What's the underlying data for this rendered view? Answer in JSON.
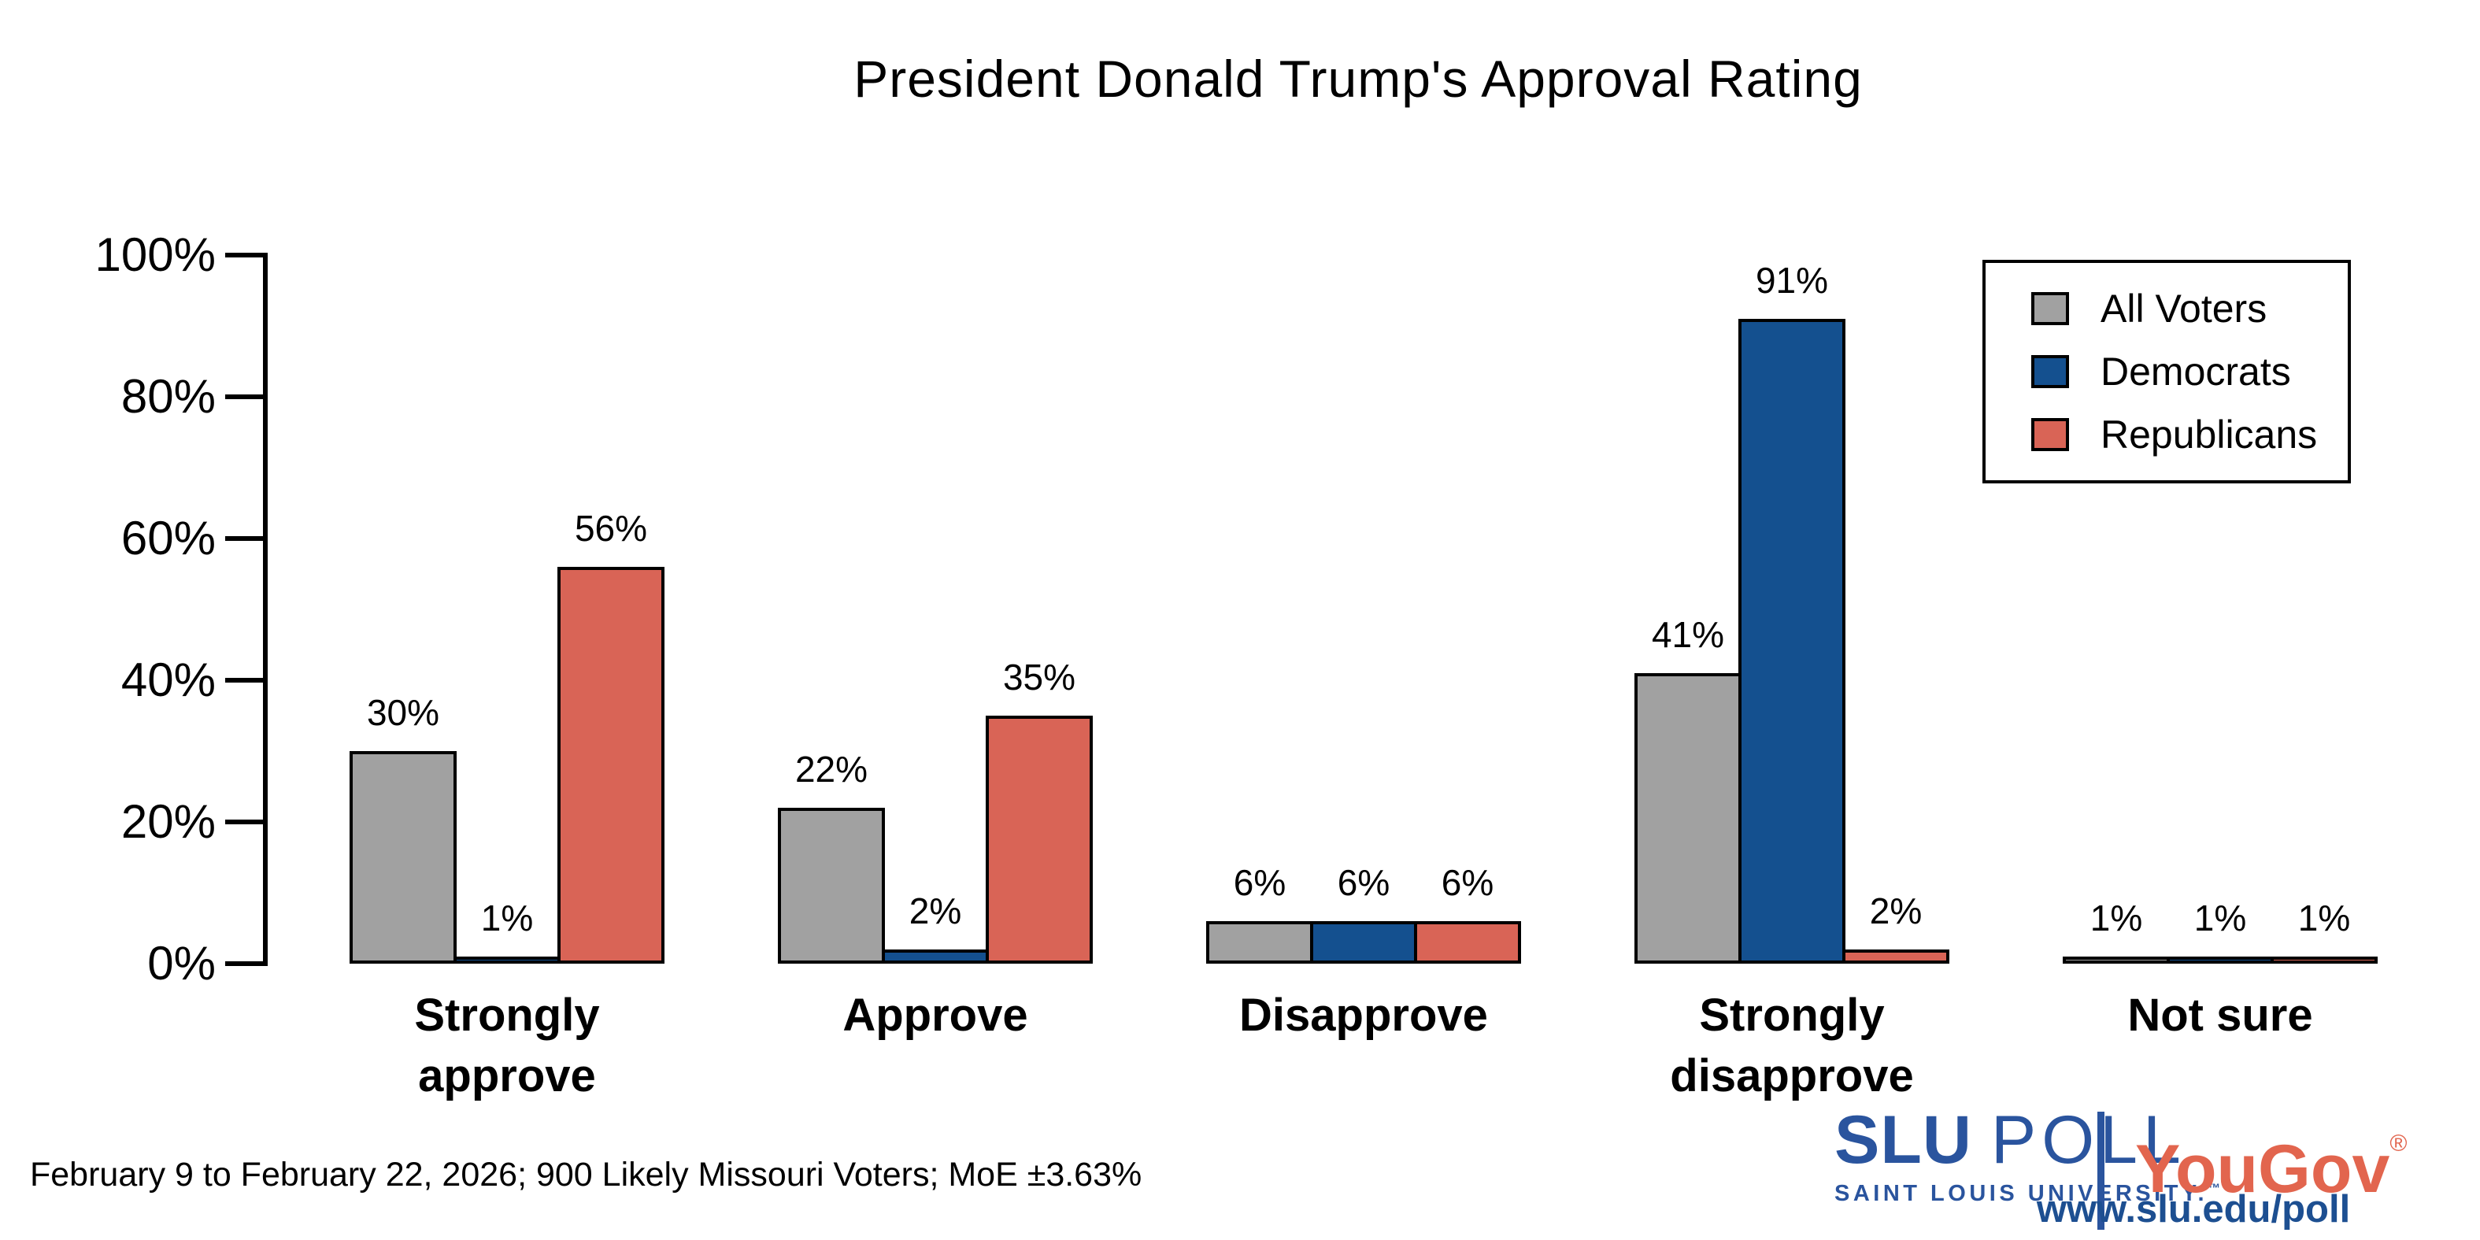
{
  "chart_data": {
    "type": "bar",
    "title": "President Donald Trump's Approval Rating",
    "categories": [
      "Strongly\napprove",
      "Approve",
      "Disapprove",
      "Strongly\ndisapprove",
      "Not sure"
    ],
    "series": [
      {
        "name": "All Voters",
        "color": "#A1A1A1",
        "values": [
          30,
          22,
          6,
          41,
          1
        ]
      },
      {
        "name": "Democrats",
        "color": "#14508F",
        "values": [
          1,
          2,
          6,
          91,
          1
        ]
      },
      {
        "name": "Republicans",
        "color": "#D96456",
        "values": [
          56,
          35,
          6,
          2,
          1
        ]
      }
    ],
    "value_suffix": "%",
    "y_axis": {
      "tick_labels": [
        "0%",
        "20%",
        "40%",
        "60%",
        "80%",
        "100%"
      ],
      "tick_values": [
        0,
        20,
        40,
        60,
        80,
        100
      ],
      "range": [
        0,
        100
      ],
      "grid": false
    },
    "legend_position": "top-right"
  },
  "footer": {
    "note": "February 9 to February 22, 2026; 900 Likely Missouri Voters; MoE ±3.63%"
  },
  "branding": {
    "slu": {
      "primary": "SLU",
      "secondary": "POLL",
      "subtitle": "SAINT LOUIS UNIVERSITY.",
      "trademark": "™",
      "color": "#2A549E"
    },
    "yougov": {
      "label": "YouGov",
      "registered": "®",
      "color": "#E2654E"
    },
    "url": {
      "label": "www.slu.edu/poll",
      "color": "#1D4F91"
    },
    "divider_color": "#2A549E"
  }
}
